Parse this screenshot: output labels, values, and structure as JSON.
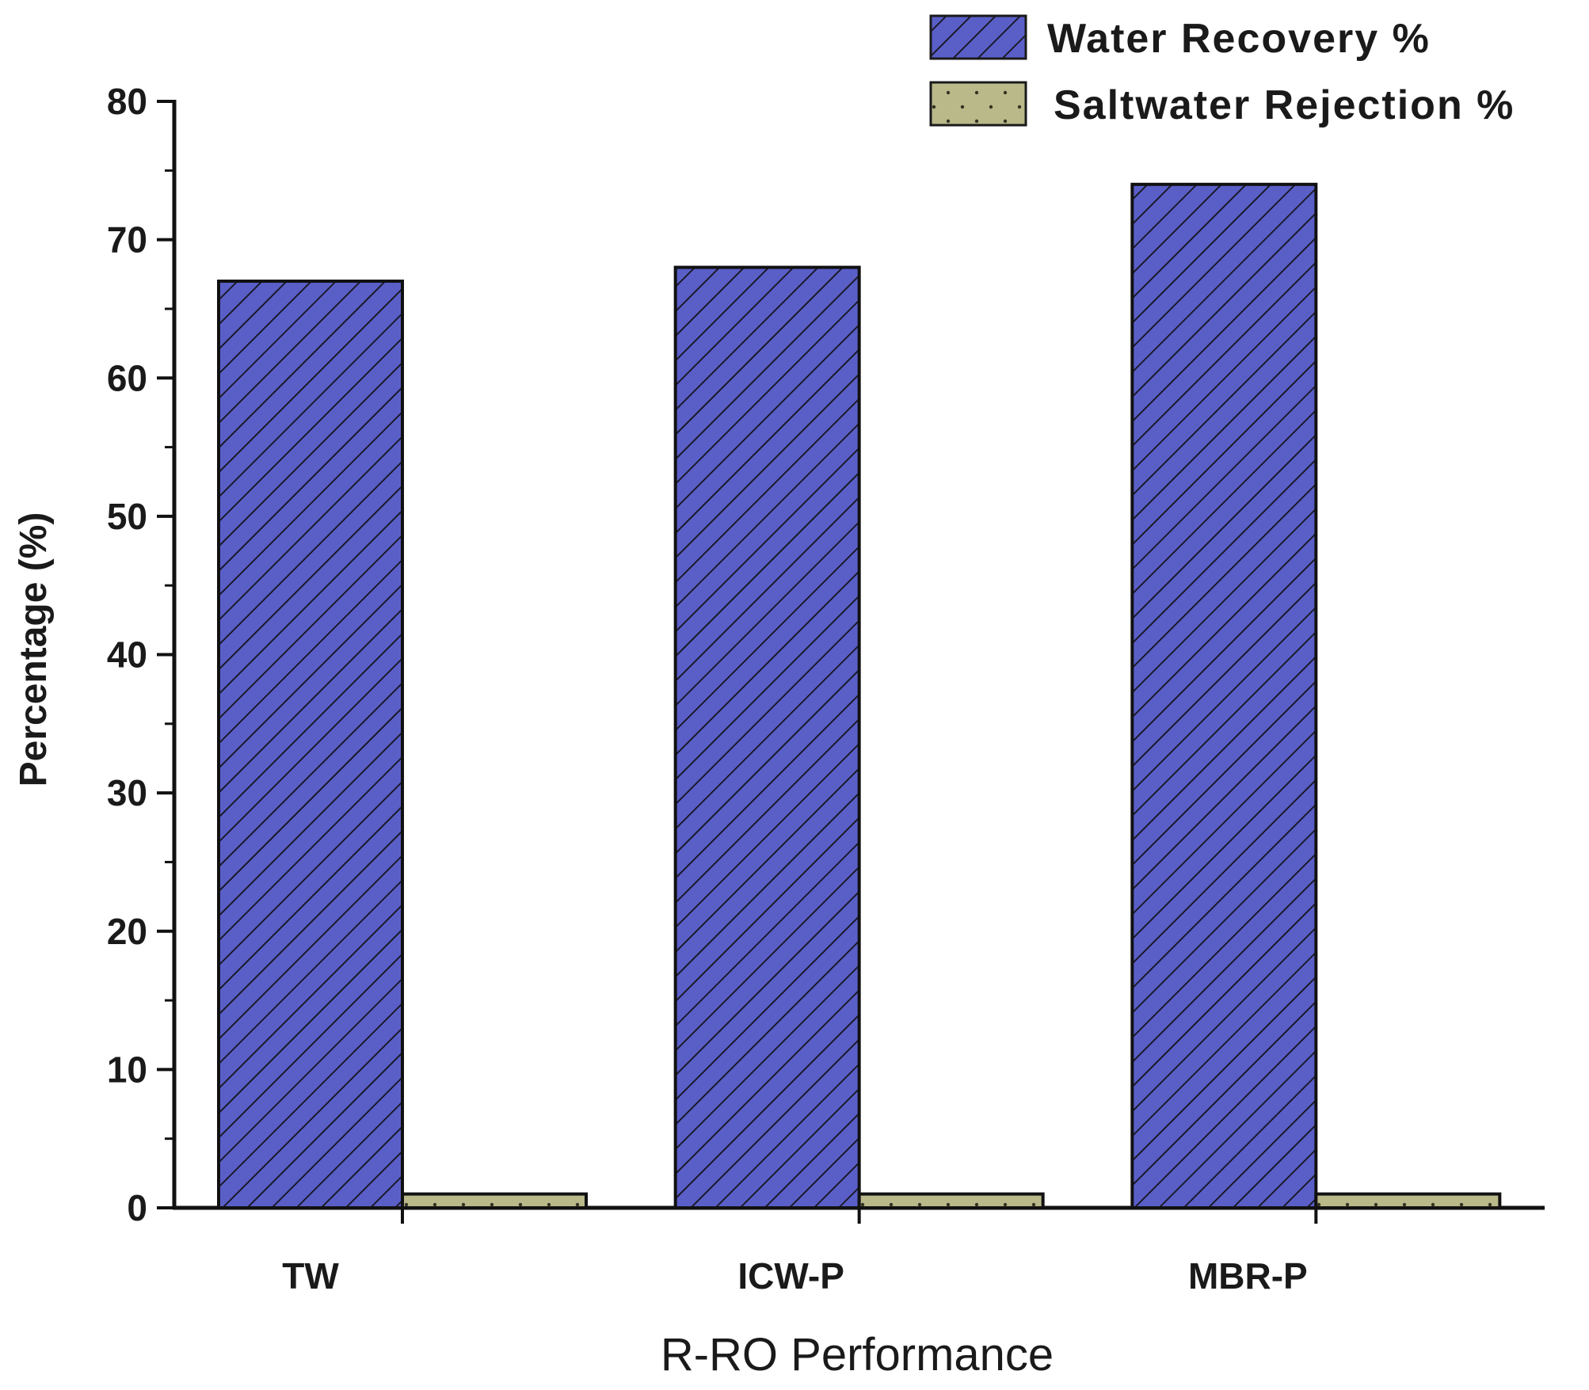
{
  "chart_data": {
    "type": "bar",
    "title": "",
    "xlabel": "R-RO Performance",
    "ylabel": "Percentage (%)",
    "ylim": [
      0,
      80
    ],
    "yticks": [
      0,
      10,
      20,
      30,
      40,
      50,
      60,
      70,
      80
    ],
    "categories": [
      "TW",
      "ICW-P",
      "MBR-P"
    ],
    "series": [
      {
        "name": "Water Recovery %",
        "values": [
          67,
          68,
          74
        ],
        "color": "#5a5fc8",
        "pattern": "diagonal-hatch"
      },
      {
        "name": "Saltwater Rejection %",
        "values": [
          1,
          1,
          1
        ],
        "color": "#b9b98a",
        "pattern": "dots"
      }
    ],
    "legend_position": "top-right",
    "grid": false
  }
}
